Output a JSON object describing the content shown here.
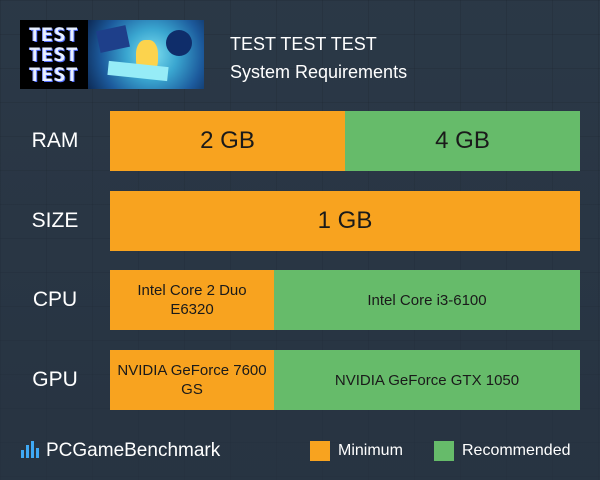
{
  "header": {
    "game_title": "TEST TEST TEST",
    "subtitle": "System Requirements",
    "thumbnail_text": [
      "TEST",
      "TEST",
      "TEST"
    ]
  },
  "rows": [
    {
      "label": "RAM",
      "minimum": "2 GB",
      "recommended": "4 GB"
    },
    {
      "label": "SIZE",
      "both": "1 GB"
    },
    {
      "label": "CPU",
      "minimum": "Intel Core 2 Duo E6320",
      "recommended": "Intel Core i3-6100"
    },
    {
      "label": "GPU",
      "minimum": "NVIDIA GeForce 7600 GS",
      "recommended": "NVIDIA GeForce GTX 1050"
    }
  ],
  "footer": {
    "brand": "PCGameBenchmark",
    "legend_minimum": "Minimum",
    "legend_recommended": "Recommended"
  },
  "colors": {
    "minimum": "#f8a31f",
    "recommended": "#66bb6a",
    "background": "#2e3d4c"
  }
}
